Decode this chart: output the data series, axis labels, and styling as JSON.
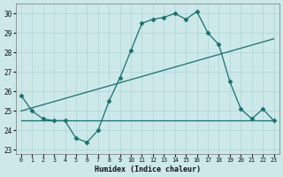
{
  "xlabel": "Humidex (Indice chaleur)",
  "bg_color": "#cce8e8",
  "line_color": "#1a7070",
  "xlim": [
    -0.5,
    23.5
  ],
  "ylim": [
    22.8,
    30.5
  ],
  "xticks": [
    0,
    1,
    2,
    3,
    4,
    5,
    6,
    7,
    8,
    9,
    10,
    11,
    12,
    13,
    14,
    15,
    16,
    17,
    18,
    19,
    20,
    21,
    22,
    23
  ],
  "yticks": [
    23,
    24,
    25,
    26,
    27,
    28,
    29,
    30
  ],
  "line1_x": [
    0,
    1,
    2,
    3,
    4,
    5,
    6,
    7,
    8,
    9,
    10,
    11,
    12,
    13,
    14,
    15,
    16,
    17,
    18,
    19,
    20,
    21,
    22,
    23
  ],
  "line1_y": [
    25.8,
    25.0,
    24.6,
    24.5,
    24.5,
    23.6,
    23.4,
    24.0,
    25.5,
    26.7,
    28.1,
    29.5,
    29.7,
    29.8,
    30.0,
    29.7,
    30.1,
    29.0,
    28.4,
    26.5,
    25.1,
    24.6,
    25.1,
    24.5
  ],
  "line2_x": [
    0,
    18,
    23
  ],
  "line2_y": [
    24.5,
    24.5,
    24.5
  ],
  "line3_x": [
    0,
    23
  ],
  "line3_y": [
    25.0,
    28.7
  ],
  "grid_color": "#afd4d4",
  "marker": "D",
  "markersize": 2.5
}
